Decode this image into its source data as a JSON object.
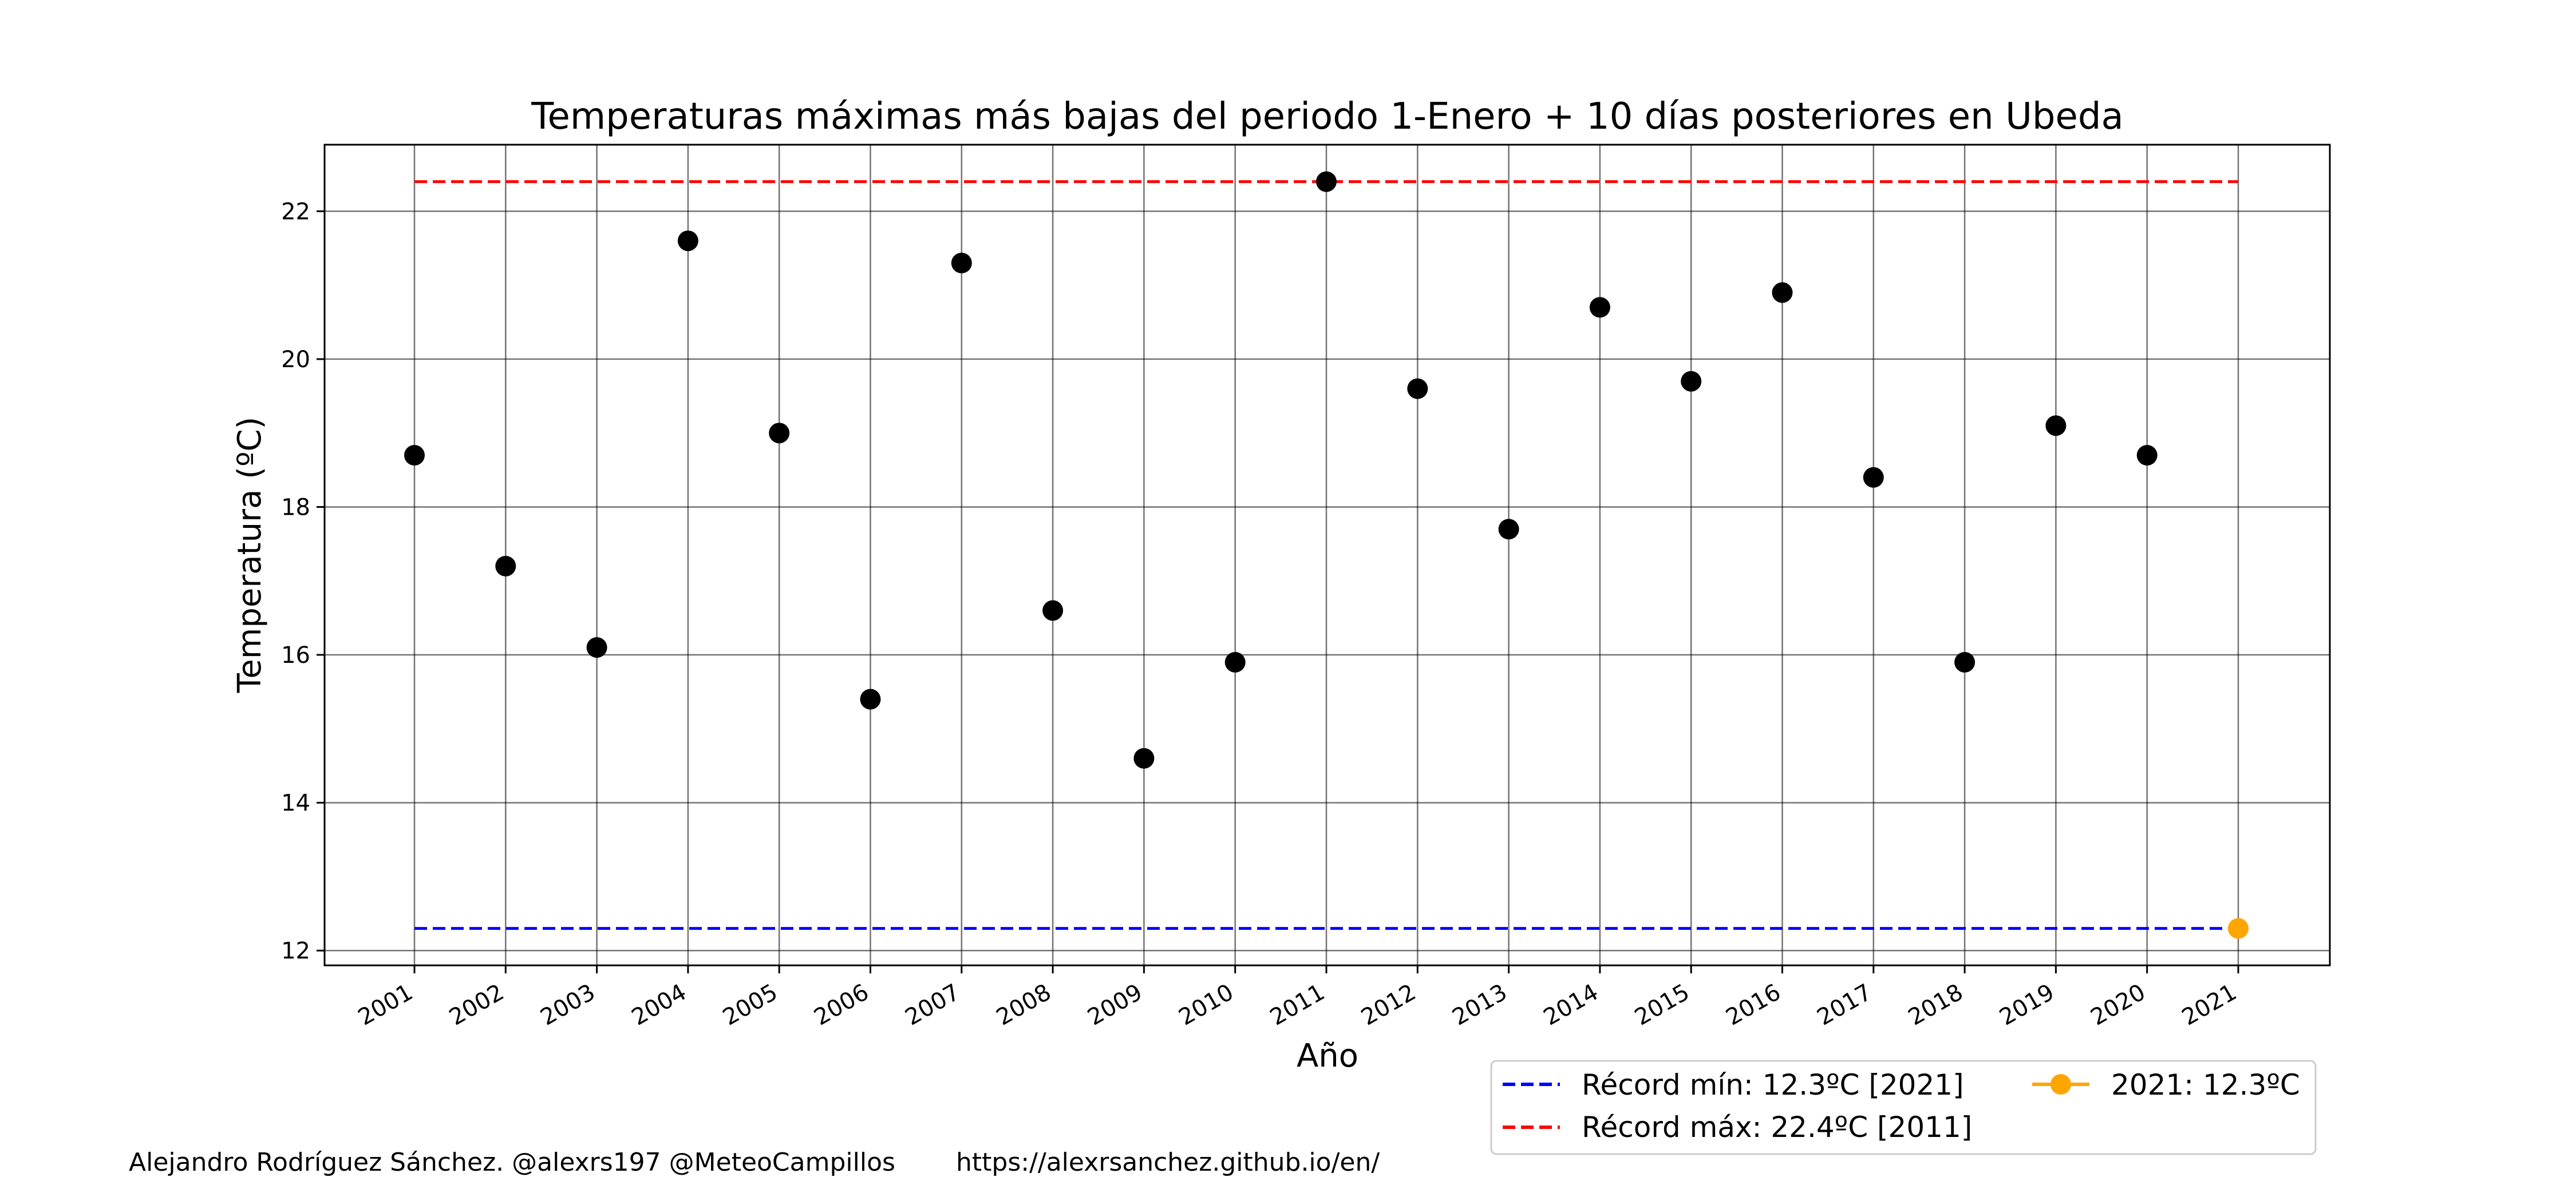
{
  "chart_data": {
    "type": "scatter",
    "title": "Temperaturas máximas más bajas del periodo 1-Enero + 10 días posteriores en Ubeda",
    "xlabel": "Año",
    "ylabel": "Temperatura (ºC)",
    "x": [
      "2001",
      "2002",
      "2003",
      "2004",
      "2005",
      "2006",
      "2007",
      "2008",
      "2009",
      "2010",
      "2011",
      "2012",
      "2013",
      "2014",
      "2015",
      "2016",
      "2017",
      "2018",
      "2019",
      "2020",
      "2021"
    ],
    "yticks": [
      12,
      14,
      16,
      18,
      20,
      22
    ],
    "ylim": [
      11.8,
      22.9
    ],
    "grid": true,
    "series": [
      {
        "values": [
          18.7,
          17.2,
          16.1,
          21.6,
          19.0,
          15.4,
          21.3,
          16.6,
          14.6,
          15.9,
          22.4,
          19.6,
          17.7,
          20.7,
          19.7,
          20.9,
          18.4,
          15.9,
          19.1,
          18.7,
          null
        ],
        "color": "#000000"
      },
      {
        "name": "2021: 12.3ºC",
        "values": [
          null,
          null,
          null,
          null,
          null,
          null,
          null,
          null,
          null,
          null,
          null,
          null,
          null,
          null,
          null,
          null,
          null,
          null,
          null,
          null,
          12.3
        ],
        "color": "#FFA500"
      }
    ],
    "reference_lines": [
      {
        "name": "Récord mín: 12.3ºC [2021]",
        "value": 12.3,
        "color": "#0000FF",
        "style": "dashed"
      },
      {
        "name": "Récord máx: 22.4ºC [2011]",
        "value": 22.4,
        "color": "#FF0000",
        "style": "dashed"
      }
    ],
    "legend_placement": "bottom-right"
  },
  "credit": {
    "author": "Alejandro Rodríguez Sánchez. @alexrs197 @MeteoCampillos",
    "url": "https://alexrsanchez.github.io/en/"
  }
}
